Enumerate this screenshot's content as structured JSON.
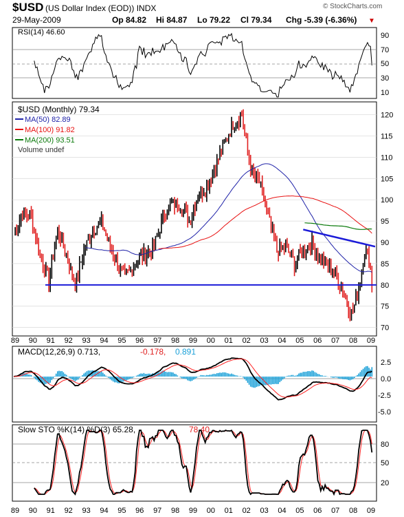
{
  "header": {
    "symbol": "$USD",
    "name": "(US Dollar Index (EOD)) INDX",
    "credit": "© StockCharts.com",
    "date": "29-May-2009",
    "open": "Op 84.82",
    "high": "Hi 84.87",
    "low": "Lo 79.22",
    "close": "Cl 79.34",
    "change": "Chg -5.39 (-6.36%)",
    "change_marker": "▼"
  },
  "rsi": {
    "label": "RSI(14) 46.60",
    "ticks": [
      "90",
      "70",
      "50",
      "30",
      "10"
    ]
  },
  "price": {
    "legend_title": "$USD (Monthly) 79.34",
    "ma50": "MA(50) 82.89",
    "ma100": "MA(100) 91.82",
    "ma200": "MA(200) 93.51",
    "volume": "Volume undef",
    "ticks": [
      "120",
      "115",
      "110",
      "105",
      "100",
      "95",
      "90",
      "85",
      "80",
      "75",
      "70"
    ]
  },
  "macd": {
    "label_main": "MACD(12,26,9) 0.713,",
    "label_signal": "-0.178,",
    "label_hist": "0.891",
    "ticks": [
      "2.5",
      "0.0",
      "-2.5",
      "-5.0"
    ]
  },
  "sto": {
    "label_main": "Slow STO %K(14) %D(3) 65.28,",
    "label_d": "78.40",
    "ticks": [
      "80",
      "50",
      "20"
    ]
  },
  "x_labels": [
    "89",
    "90",
    "91",
    "92",
    "93",
    "94",
    "95",
    "96",
    "97",
    "98",
    "99",
    "00",
    "01",
    "02",
    "03",
    "04",
    "05",
    "06",
    "07",
    "08",
    "09"
  ],
  "colors": {
    "ma50": "#1f22a8",
    "ma100": "#e81010",
    "ma200": "#0b7a0b",
    "trend": "#1a1ad8",
    "up": "#000000",
    "down": "#e01e1e",
    "hist": "#1aa0d8",
    "signal": "#ff2020",
    "change": "#cc0000"
  },
  "chart_data": {
    "type": "line",
    "title": "$USD (US Dollar Index (EOD)) INDX",
    "x_range": [
      "1989",
      "2009"
    ],
    "price_ylim": [
      68,
      123
    ],
    "approx_close": [
      [
        1989.0,
        92
      ],
      [
        1989.5,
        97
      ],
      [
        1990.0,
        96
      ],
      [
        1990.5,
        87
      ],
      [
        1991.0,
        81
      ],
      [
        1991.5,
        93
      ],
      [
        1992.0,
        87
      ],
      [
        1992.5,
        80
      ],
      [
        1993.0,
        88
      ],
      [
        1993.5,
        93
      ],
      [
        1994.0,
        95
      ],
      [
        1994.5,
        89
      ],
      [
        1995.0,
        84
      ],
      [
        1995.3,
        82
      ],
      [
        1995.6,
        83
      ],
      [
        1996.0,
        86
      ],
      [
        1996.5,
        87
      ],
      [
        1997.0,
        89
      ],
      [
        1997.5,
        96
      ],
      [
        1998.0,
        99
      ],
      [
        1998.5,
        99
      ],
      [
        1999.0,
        95
      ],
      [
        1999.5,
        101
      ],
      [
        2000.0,
        103
      ],
      [
        2000.5,
        108
      ],
      [
        2001.0,
        113
      ],
      [
        2001.5,
        118
      ],
      [
        2002.0,
        120
      ],
      [
        2002.3,
        112
      ],
      [
        2002.6,
        106
      ],
      [
        2003.0,
        104
      ],
      [
        2003.5,
        96
      ],
      [
        2004.0,
        88
      ],
      [
        2004.5,
        89
      ],
      [
        2005.0,
        85
      ],
      [
        2005.5,
        88
      ],
      [
        2006.0,
        90
      ],
      [
        2006.5,
        86
      ],
      [
        2007.0,
        84
      ],
      [
        2007.5,
        81
      ],
      [
        2008.0,
        76
      ],
      [
        2008.3,
        73
      ],
      [
        2008.7,
        80
      ],
      [
        2009.0,
        88
      ],
      [
        2009.3,
        86
      ],
      [
        2009.4,
        79.34
      ]
    ],
    "support_line": 80,
    "resistance_line": {
      "from": [
        2005.5,
        93
      ],
      "to": [
        2009.7,
        89
      ]
    },
    "rsi_last": 46.6,
    "macd_last": {
      "macd": 0.713,
      "signal": -0.178,
      "histogram": 0.891
    },
    "sto_last": {
      "k": 65.28,
      "d": 78.4
    }
  }
}
